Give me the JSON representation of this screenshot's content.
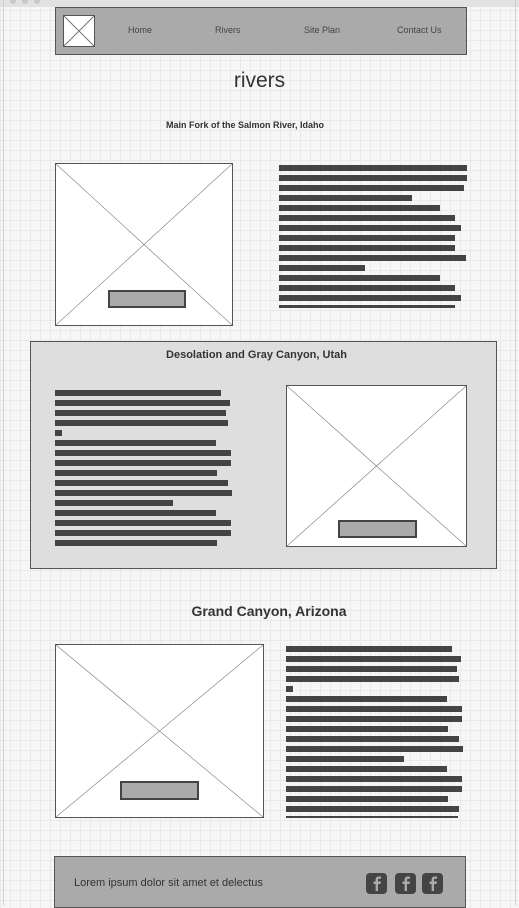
{
  "nav": {
    "links": [
      "Home",
      "Rivers",
      "Site Plan",
      "Contact Us"
    ]
  },
  "page": {
    "title": "rivers"
  },
  "sections": [
    {
      "title": "Main Fork of the Salmon River, Idaho"
    },
    {
      "title": "Desolation and Gray Canyon, Utah"
    },
    {
      "title": "Grand Canyon, Arizona"
    }
  ],
  "footer": {
    "text": "Lorem ipsum dolor sit amet et delectus",
    "social_icons": [
      "facebook-icon",
      "facebook-icon",
      "facebook-icon"
    ]
  },
  "colors": {
    "nav_background": "#aaaaaa",
    "band_background": "#dedede",
    "text_line": "#444444",
    "border": "#555555"
  }
}
